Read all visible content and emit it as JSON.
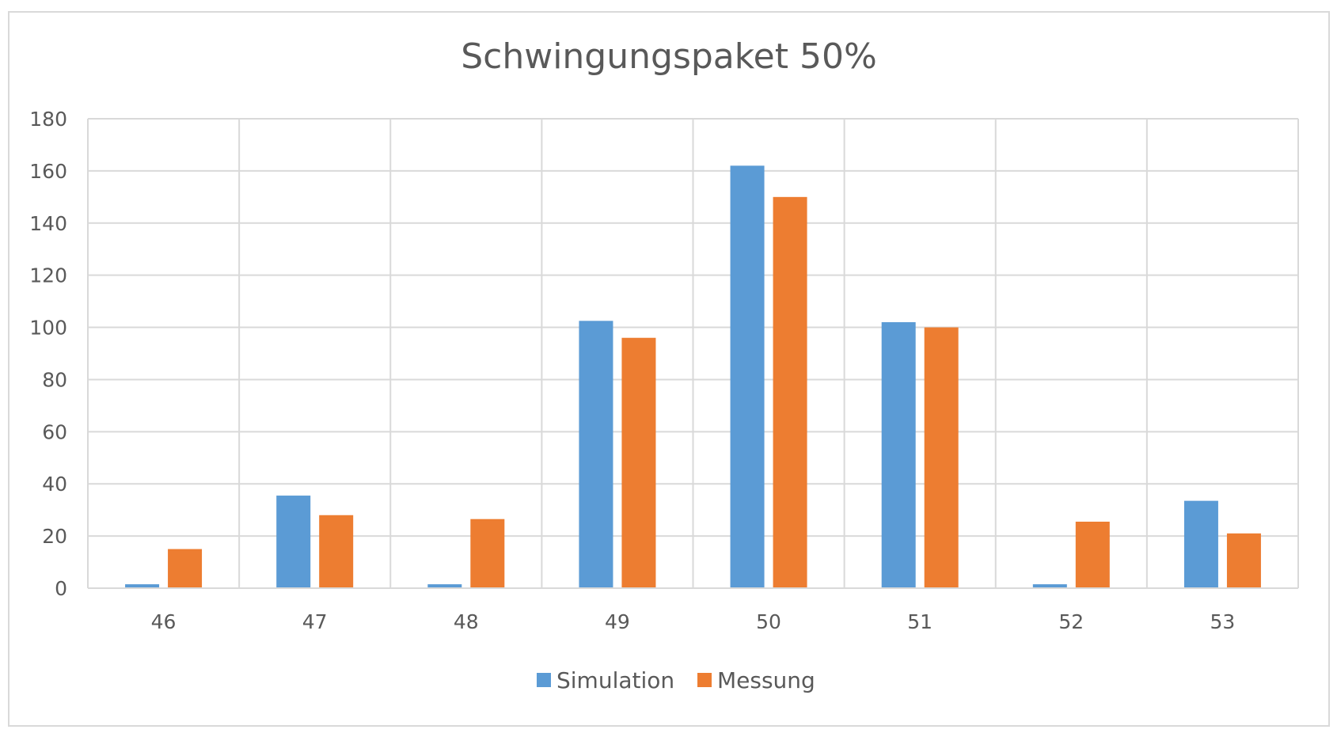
{
  "chart_data": {
    "type": "bar",
    "title": "Schwingungspaket 50%",
    "xlabel": "",
    "ylabel": "",
    "categories": [
      "46",
      "47",
      "48",
      "49",
      "50",
      "51",
      "52",
      "53"
    ],
    "series": [
      {
        "name": "Simulation",
        "color": "#5b9bd5",
        "values": [
          1.5,
          35.5,
          1.5,
          102.5,
          162,
          102,
          1.5,
          33.5
        ]
      },
      {
        "name": "Messung",
        "color": "#ed7d31",
        "values": [
          15,
          28,
          26.5,
          96,
          150,
          100,
          25.5,
          21
        ]
      }
    ],
    "ylim": [
      0,
      180
    ],
    "yticks": [
      0,
      20,
      40,
      60,
      80,
      100,
      120,
      140,
      160,
      180
    ],
    "ytick_labels": [
      "0",
      "20",
      "40",
      "60",
      "80",
      "100",
      "120",
      "140",
      "160",
      "180"
    ],
    "grid": true,
    "legend_position": "bottom"
  }
}
